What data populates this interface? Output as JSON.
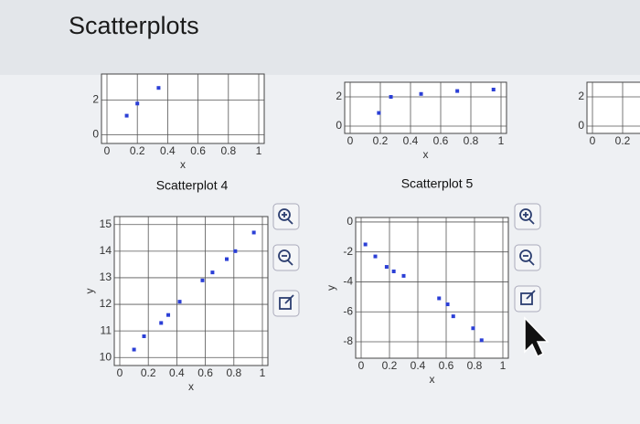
{
  "header": {
    "title": "Scatterplots"
  },
  "chart_data": [
    {
      "type": "scatter",
      "xlabel": "x",
      "xlim": [
        0,
        1
      ],
      "ylim": [
        -0.5,
        3.5
      ],
      "xticks": [
        0,
        0.2,
        0.4,
        0.6,
        0.8,
        1
      ],
      "yticks": [
        0,
        2
      ],
      "grid": true,
      "series": [
        {
          "color": "#2b3fd6",
          "x": [
            0.13,
            0.2,
            0.34
          ],
          "values": [
            1.1,
            1.8,
            2.7
          ]
        }
      ]
    },
    {
      "type": "scatter",
      "xlabel": "x",
      "xlim": [
        0,
        1
      ],
      "ylim": [
        -0.5,
        3
      ],
      "xticks": [
        0,
        0.2,
        0.4,
        0.6,
        0.8,
        1
      ],
      "yticks": [
        0,
        2
      ],
      "grid": true,
      "series": [
        {
          "color": "#2b3fd6",
          "x": [
            0.19,
            0.27,
            0.47,
            0.71,
            0.95
          ],
          "values": [
            0.9,
            2.0,
            2.2,
            2.4,
            2.5
          ]
        }
      ]
    },
    {
      "type": "scatter",
      "xlim": [
        0,
        1
      ],
      "ylim": [
        -0.5,
        3
      ],
      "xticks": [
        0,
        0.2
      ],
      "yticks": [
        0,
        2
      ],
      "grid": true,
      "series": [
        {
          "color": "#2b3fd6",
          "x": [],
          "values": []
        }
      ]
    },
    {
      "type": "scatter",
      "title": "Scatterplot 4",
      "xlabel": "x",
      "ylabel": "y",
      "xlim": [
        0,
        1
      ],
      "ylim": [
        9.7,
        15.3
      ],
      "xticks": [
        0,
        0.2,
        0.4,
        0.6,
        0.8,
        1
      ],
      "yticks": [
        10,
        11,
        12,
        13,
        14,
        15
      ],
      "grid": true,
      "series": [
        {
          "color": "#2b3fd6",
          "x": [
            0.1,
            0.17,
            0.29,
            0.34,
            0.42,
            0.58,
            0.65,
            0.75,
            0.81,
            0.94
          ],
          "values": [
            10.3,
            10.8,
            11.3,
            11.6,
            12.1,
            12.9,
            13.2,
            13.7,
            14,
            14.7
          ]
        }
      ]
    },
    {
      "type": "scatter",
      "title": "Scatterplot 5",
      "xlabel": "x",
      "ylabel": "y",
      "xlim": [
        0,
        1
      ],
      "ylim": [
        -9.1,
        0.3
      ],
      "xticks": [
        0,
        0.2,
        0.4,
        0.6,
        0.8,
        1
      ],
      "yticks": [
        0,
        -2,
        -4,
        -6,
        -8
      ],
      "grid": true,
      "series": [
        {
          "color": "#2b3fd6",
          "x": [
            0.03,
            0.1,
            0.18,
            0.23,
            0.3,
            0.55,
            0.61,
            0.65,
            0.79,
            0.85
          ],
          "values": [
            -1.5,
            -2.3,
            -3.0,
            -3.3,
            -3.6,
            -5.1,
            -5.5,
            -6.3,
            -7.1,
            -7.9
          ]
        }
      ]
    }
  ]
}
